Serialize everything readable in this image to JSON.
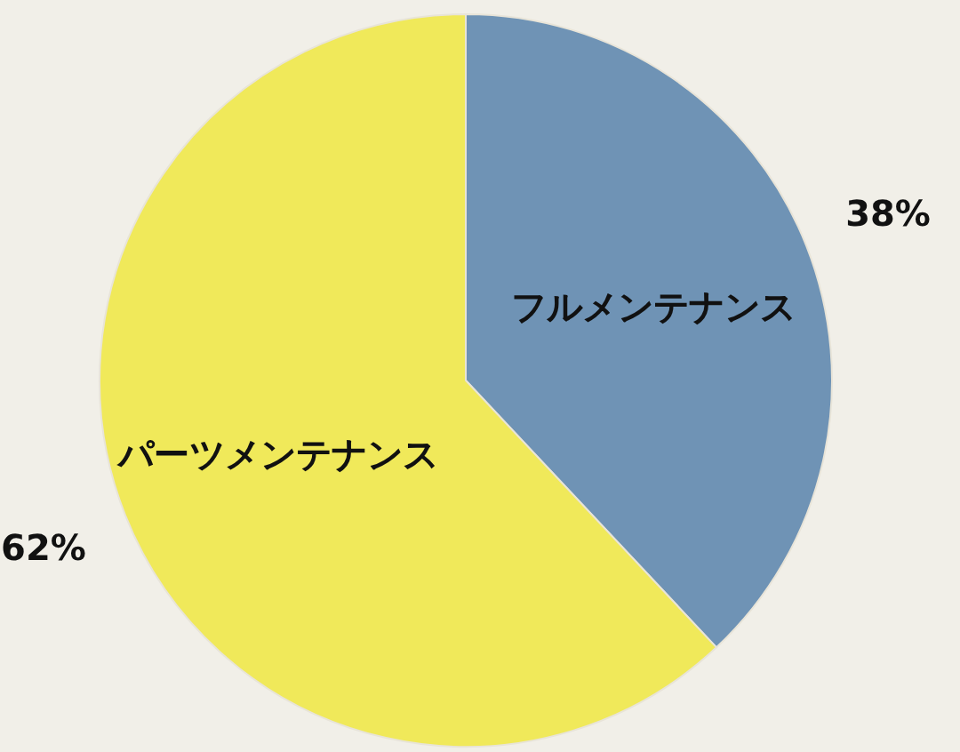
{
  "chart_data": {
    "type": "pie",
    "categories": [
      "フルメンテナンス",
      "パーツメンテナンス"
    ],
    "values": [
      38,
      62
    ],
    "colors": [
      "#6f93b5",
      "#f0e95a"
    ],
    "value_labels": [
      "38%",
      "62%"
    ]
  }
}
